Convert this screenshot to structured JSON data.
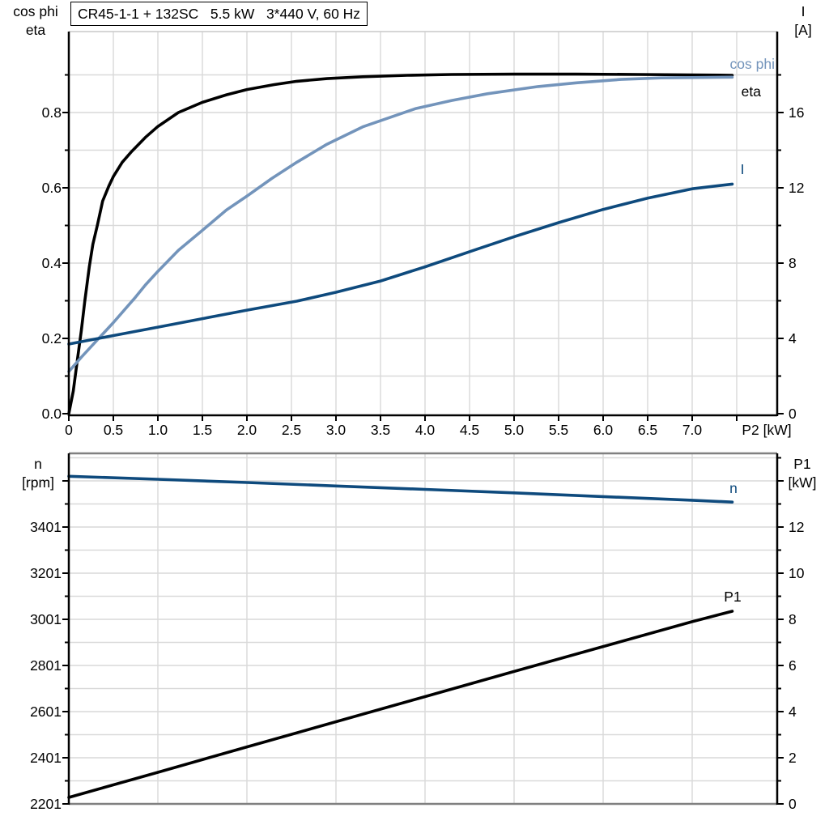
{
  "title_box": "CR45-1-1 + 132SC   5.5 kW   3*440 V, 60 Hz",
  "axis_headers": {
    "top_left_line1": "cos phi",
    "top_left_line2": "eta",
    "top_right_line1": "I",
    "top_right_line2": "[A]",
    "bottom_left_line1": "n",
    "bottom_left_line2": "[rpm]",
    "bottom_right_line1": "P1",
    "bottom_right_line2": "[kW]"
  },
  "colors": {
    "curve_black": "#000000",
    "curve_dark_blue": "#0e4a7d",
    "curve_steel_blue": "#7394bb",
    "grid": "#d9d9d9",
    "frame_gray": "#808080",
    "frame_light": "#c9c9c9",
    "axis_black": "#000000"
  },
  "chart_data": [
    {
      "id": "top",
      "type": "line",
      "title": "CR45-1-1 + 132SC   5.5 kW   3*440 V, 60 Hz",
      "x_axis": {
        "label": "P2 [kW]",
        "range": [
          0,
          7.95
        ],
        "tick_values": [
          0,
          0.5,
          1,
          1.5,
          2,
          2.5,
          3,
          3.5,
          4,
          4.5,
          5,
          5.5,
          6,
          6.5,
          7
        ],
        "tick_labels": [
          "0",
          "0.5",
          "1.0",
          "1.5",
          "2.0",
          "2.5",
          "3.0",
          "3.5",
          "4.0",
          "4.5",
          "5.0",
          "5.5",
          "6.0",
          "6.5",
          "7.0"
        ],
        "extra_tick_values": [
          7.5
        ],
        "grid_values": [
          0.5,
          1,
          1.5,
          2,
          2.5,
          3,
          3.5,
          4,
          4.5,
          5,
          5.5,
          6,
          6.5,
          7,
          7.5
        ]
      },
      "left_axis": {
        "name": "cos phi / eta",
        "range": [
          0,
          1.01
        ],
        "tick_values": [
          0,
          0.2,
          0.4,
          0.6,
          0.8
        ],
        "tick_labels": [
          "0.0",
          "0.2",
          "0.4",
          "0.6",
          "0.8"
        ],
        "extra_tick_values": [],
        "minor_tick_values": [
          0.1,
          0.3,
          0.5,
          0.7,
          0.9
        ]
      },
      "right_axis": {
        "name": "I [A]",
        "range": [
          0,
          20.3
        ],
        "tick_values": [
          0,
          4,
          8,
          12,
          16
        ],
        "tick_labels": [
          "0",
          "4",
          "8",
          "12",
          "16"
        ],
        "extra_tick_values": [],
        "minor_tick_values": [
          2,
          6,
          10,
          14,
          18
        ]
      },
      "h_grid": {
        "axis": "left",
        "values": [
          0.1,
          0.2,
          0.3,
          0.4,
          0.5,
          0.6,
          0.7,
          0.8,
          0.9
        ]
      },
      "series": [
        {
          "name": "eta",
          "axis": "left",
          "color": "curve_black",
          "label": "eta",
          "label_pos": {
            "x": 940,
            "y": 119,
            "anchor": "end"
          },
          "points": [
            [
              0,
              0
            ],
            [
              0.05,
              0.06
            ],
            [
              0.1,
              0.15
            ],
            [
              0.14,
              0.22
            ],
            [
              0.18,
              0.3
            ],
            [
              0.23,
              0.39
            ],
            [
              0.27,
              0.45
            ],
            [
              0.32,
              0.5
            ],
            [
              0.38,
              0.565
            ],
            [
              0.45,
              0.605
            ],
            [
              0.5,
              0.63
            ],
            [
              0.6,
              0.668
            ],
            [
              0.7,
              0.695
            ],
            [
              0.86,
              0.734
            ],
            [
              1.0,
              0.763
            ],
            [
              1.23,
              0.8
            ],
            [
              1.5,
              0.827
            ],
            [
              1.77,
              0.847
            ],
            [
              2.0,
              0.861
            ],
            [
              2.3,
              0.874
            ],
            [
              2.56,
              0.883
            ],
            [
              2.9,
              0.89
            ],
            [
              3.3,
              0.895
            ],
            [
              3.8,
              0.899
            ],
            [
              4.3,
              0.901
            ],
            [
              5.0,
              0.902
            ],
            [
              5.7,
              0.902
            ],
            [
              6.4,
              0.901
            ],
            [
              7.0,
              0.9
            ],
            [
              7.45,
              0.899
            ]
          ]
        },
        {
          "name": "cos phi",
          "axis": "left",
          "color": "curve_steel_blue",
          "label": "cos phi",
          "label_pos": {
            "x": 957,
            "y": 85,
            "anchor": "end"
          },
          "points": [
            [
              0,
              0.112
            ],
            [
              0.14,
              0.15
            ],
            [
              0.25,
              0.178
            ],
            [
              0.5,
              0.242
            ],
            [
              0.75,
              0.31
            ],
            [
              0.86,
              0.342
            ],
            [
              1.0,
              0.378
            ],
            [
              1.23,
              0.434
            ],
            [
              1.5,
              0.487
            ],
            [
              1.77,
              0.541
            ],
            [
              2.0,
              0.578
            ],
            [
              2.28,
              0.625
            ],
            [
              2.56,
              0.668
            ],
            [
              2.9,
              0.716
            ],
            [
              3.3,
              0.762
            ],
            [
              3.89,
              0.81
            ],
            [
              4.3,
              0.832
            ],
            [
              4.7,
              0.85
            ],
            [
              5.27,
              0.869
            ],
            [
              5.7,
              0.879
            ],
            [
              6.2,
              0.888
            ],
            [
              6.65,
              0.892
            ],
            [
              7.0,
              0.893
            ],
            [
              7.45,
              0.894
            ]
          ]
        },
        {
          "name": "I",
          "axis": "right",
          "color": "curve_dark_blue",
          "label": "I",
          "label_pos": {
            "x": 917,
            "y": 215,
            "anchor": "middle"
          },
          "points": [
            [
              0,
              3.7
            ],
            [
              0.5,
              4.15
            ],
            [
              1.0,
              4.6
            ],
            [
              1.5,
              5.05
            ],
            [
              2.0,
              5.5
            ],
            [
              2.56,
              5.98
            ],
            [
              3.0,
              6.45
            ],
            [
              3.5,
              7.05
            ],
            [
              4.0,
              7.8
            ],
            [
              4.56,
              8.7
            ],
            [
              5.0,
              9.4
            ],
            [
              5.5,
              10.15
            ],
            [
              6.0,
              10.85
            ],
            [
              6.5,
              11.45
            ],
            [
              7.0,
              11.95
            ],
            [
              7.45,
              12.2
            ]
          ]
        }
      ]
    },
    {
      "id": "bottom",
      "type": "line",
      "title": "",
      "x_axis": {
        "label": "",
        "range": [
          0,
          7.95
        ],
        "tick_values": [],
        "tick_labels": [],
        "extra_tick_values": [],
        "grid_values": [
          1,
          2,
          3,
          4,
          5,
          6,
          7
        ]
      },
      "left_axis": {
        "name": "n [rpm]",
        "range": [
          2201,
          3720
        ],
        "tick_values": [
          2201,
          2401,
          2601,
          2801,
          3001,
          3201,
          3401
        ],
        "tick_labels": [
          "2201",
          "2401",
          "2601",
          "2801",
          "3001",
          "3201",
          "3401"
        ],
        "extra_tick_values": [
          3601
        ],
        "minor_tick_values": [
          2301,
          2501,
          2701,
          2901,
          3101,
          3301,
          3501
        ]
      },
      "right_axis": {
        "name": "P1 [kW]",
        "range": [
          0,
          15.2
        ],
        "tick_values": [
          0,
          2,
          4,
          6,
          8,
          10,
          12
        ],
        "tick_labels": [
          "0",
          "2",
          "4",
          "6",
          "8",
          "10",
          "12"
        ],
        "extra_tick_values": [
          14
        ],
        "minor_tick_values": [
          1,
          3,
          5,
          7,
          9,
          11,
          13,
          15
        ]
      },
      "h_grid": {
        "axis": "right",
        "values": [
          1,
          2,
          3,
          4,
          5,
          6,
          7,
          8,
          9,
          10,
          11,
          12,
          13,
          14,
          15
        ]
      },
      "series": [
        {
          "name": "n",
          "axis": "left",
          "color": "curve_dark_blue",
          "label": "n",
          "label_pos": {
            "x": 906,
            "y": 609,
            "anchor": "middle"
          },
          "points": [
            [
              0,
              3621
            ],
            [
              1,
              3608
            ],
            [
              2,
              3594
            ],
            [
              3,
              3579
            ],
            [
              4,
              3564
            ],
            [
              5,
              3549
            ],
            [
              6,
              3533
            ],
            [
              7,
              3517
            ],
            [
              7.45,
              3509
            ]
          ]
        },
        {
          "name": "P1",
          "axis": "black",
          "color": "curve_black",
          "label": "P1",
          "label_pos": {
            "x": 905,
            "y": 743,
            "anchor": "middle"
          },
          "points": [
            [
              0,
              0.28
            ],
            [
              1,
              1.37
            ],
            [
              2,
              2.47
            ],
            [
              3,
              3.56
            ],
            [
              4,
              4.65
            ],
            [
              5,
              5.74
            ],
            [
              6,
              6.82
            ],
            [
              7,
              7.9
            ],
            [
              7.45,
              8.35
            ]
          ]
        }
      ]
    }
  ]
}
